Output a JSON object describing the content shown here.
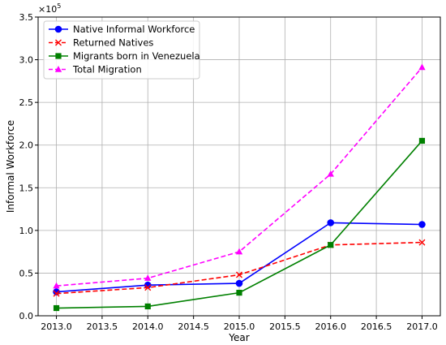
{
  "chart_data": {
    "type": "line",
    "xlabel": "Year",
    "ylabel": "Informal Workforce",
    "y_multiplier_text": "×10",
    "y_multiplier_exponent": "5",
    "xlim": [
      2012.8,
      2017.2
    ],
    "ylim": [
      0,
      3.5
    ],
    "x_ticks": [
      2013.0,
      2013.5,
      2014.0,
      2014.5,
      2015.0,
      2015.5,
      2016.0,
      2016.5,
      2017.0
    ],
    "x_tick_labels": [
      "2013.0",
      "2013.5",
      "2014.0",
      "2014.5",
      "2015.0",
      "2015.5",
      "2016.0",
      "2016.5",
      "2017.0"
    ],
    "y_ticks": [
      0,
      0.5,
      1.0,
      1.5,
      2.0,
      2.5,
      3.0,
      3.5
    ],
    "y_tick_labels": [
      "0.0",
      "0.5",
      "1.0",
      "1.5",
      "2.0",
      "2.5",
      "3.0",
      "3.5"
    ],
    "grid": true,
    "legend_position": "top-left",
    "x": [
      2013,
      2014,
      2015,
      2016,
      2017
    ],
    "series": [
      {
        "name": "Native Informal Workforce",
        "values": [
          0.28,
          0.36,
          0.38,
          1.09,
          1.07
        ],
        "color": "#0000ff",
        "dash": "solid",
        "marker": "circle"
      },
      {
        "name": "Returned Natives",
        "values": [
          0.26,
          0.33,
          0.48,
          0.83,
          0.86
        ],
        "color": "#ff0000",
        "dash": "dashed",
        "marker": "x"
      },
      {
        "name": "Migrants born in Venezuela",
        "values": [
          0.09,
          0.11,
          0.27,
          0.83,
          2.05
        ],
        "color": "#008000",
        "dash": "solid",
        "marker": "square"
      },
      {
        "name": "Total Migration",
        "values": [
          0.35,
          0.44,
          0.75,
          1.66,
          2.91
        ],
        "color": "#ff00ff",
        "dash": "dashed",
        "marker": "triangle"
      }
    ]
  }
}
